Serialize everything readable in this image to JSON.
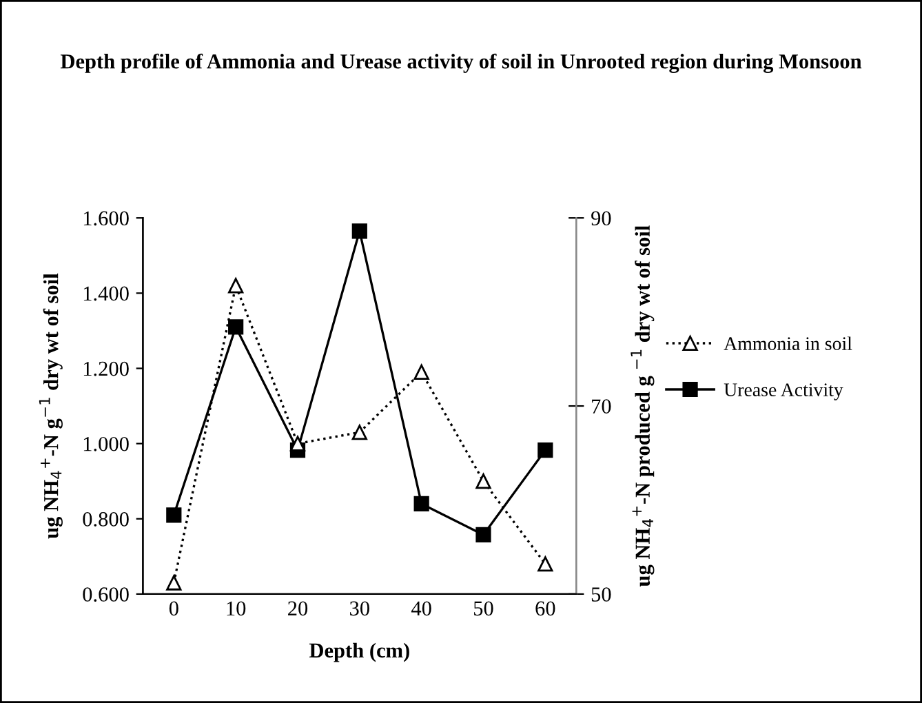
{
  "chart_data": {
    "type": "line",
    "title": "Depth profile of Ammonia and Urease activity of soil in Unrooted region during Monsoon",
    "xlabel": "Depth (cm)",
    "ylabel": "ug NH$_{4}$$^{+}$-N g$^{−1}$ dry wt of soil",
    "y2label": "ug NH$_{4}$$^{+}$-N produced g $^{−1}$ dry wt of soil",
    "categories": [
      "0",
      "10",
      "20",
      "30",
      "40",
      "50",
      "60"
    ],
    "series": [
      {
        "name": "Ammonia in soil",
        "color": "#000000",
        "marker": "triangle",
        "line_style": "dotted",
        "values": [
          0.63,
          1.42,
          1.0,
          1.03,
          1.19,
          0.9,
          0.68
        ]
      },
      {
        "name": "Urease Activity",
        "color": "#000000",
        "marker": "square",
        "line_style": "solid",
        "axis": "y2",
        "values": [
          58.4,
          78.4,
          65.3,
          88.6,
          59.6,
          56.3,
          65.3
        ]
      }
    ],
    "ylim": [
      0.6,
      1.6
    ],
    "yticks": [
      {
        "value": 0.6,
        "label": "0.600"
      },
      {
        "value": 0.8,
        "label": "0.800"
      },
      {
        "value": 1.0,
        "label": "1.000"
      },
      {
        "value": 1.2,
        "label": "1.200"
      },
      {
        "value": 1.4,
        "label": "1.400"
      },
      {
        "value": 1.6,
        "label": "1.600"
      }
    ],
    "y2lim": [
      50,
      90
    ],
    "y2ticks": [
      50,
      70,
      90
    ],
    "grid": false,
    "legend": "right"
  }
}
